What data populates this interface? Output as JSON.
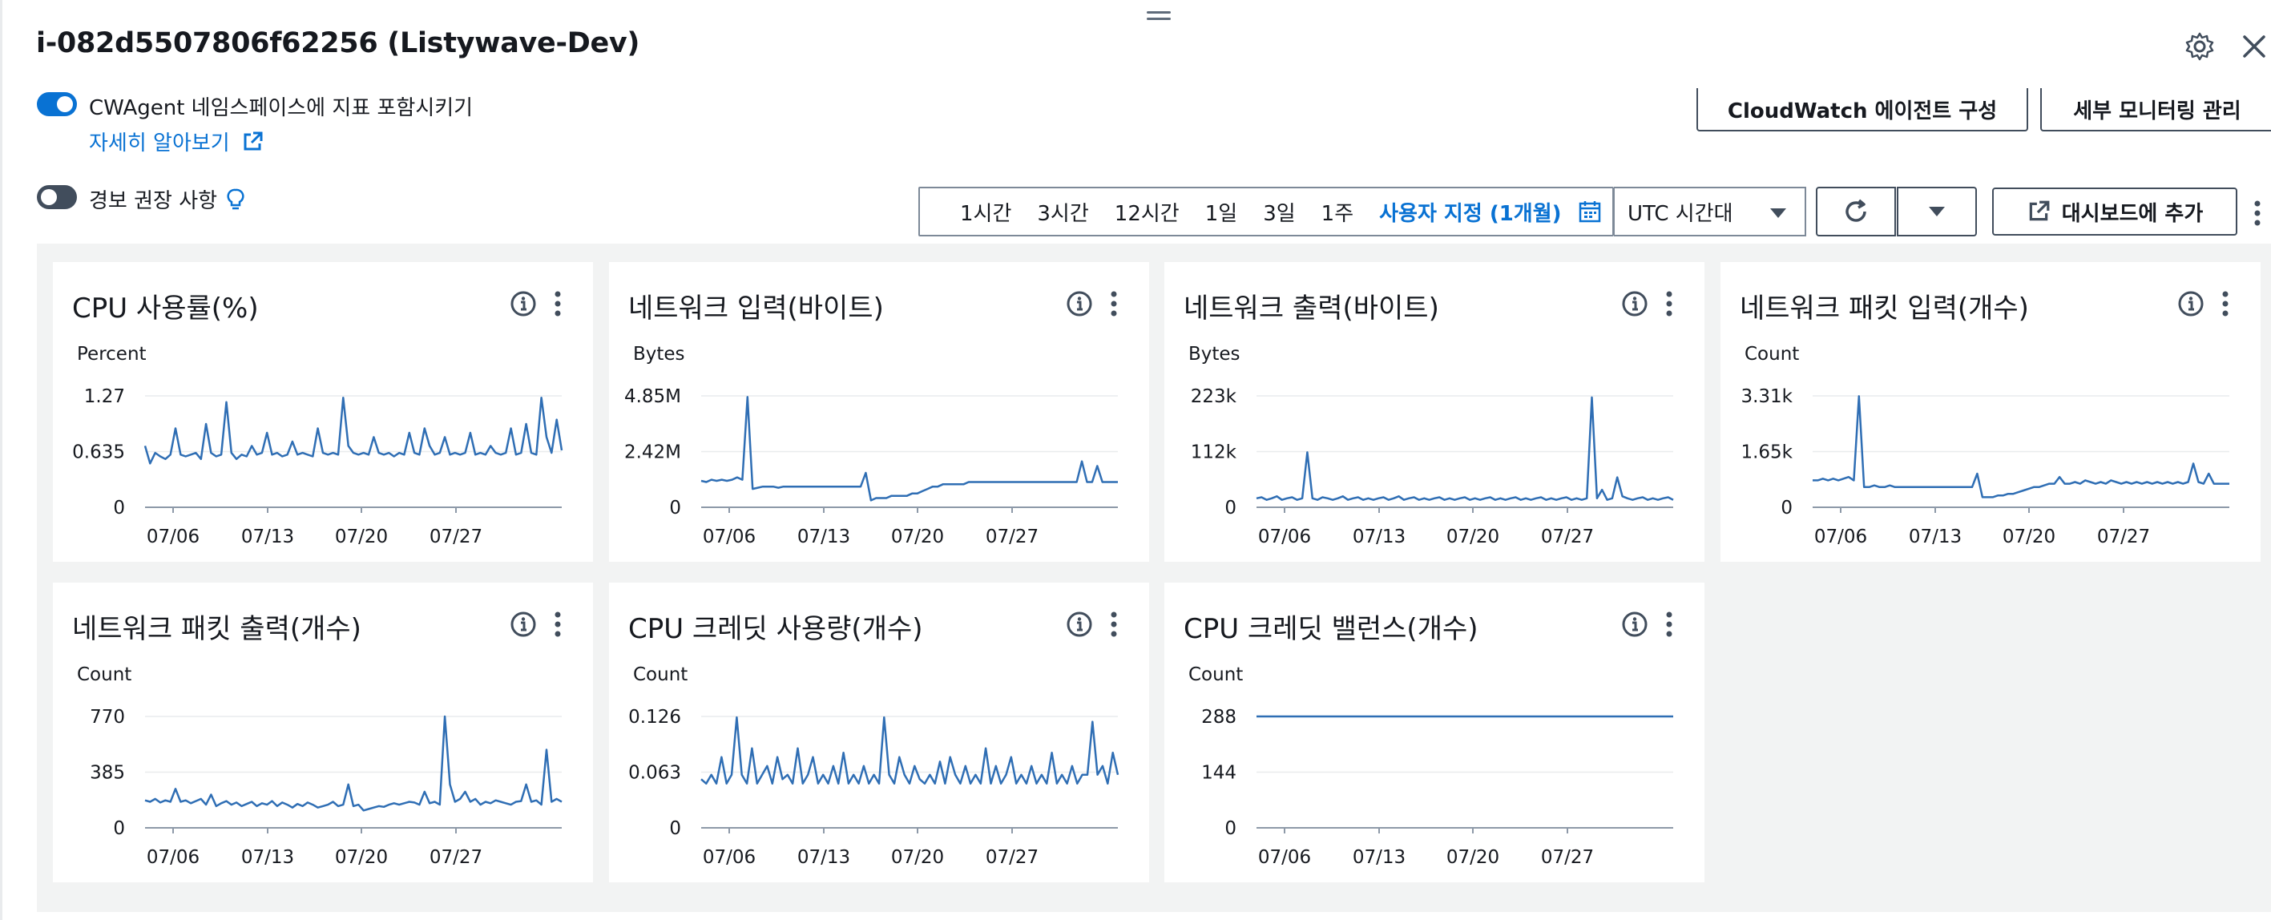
{
  "header": {
    "title": "i-082d5507806f62256 (Listywave-Dev)",
    "settings_icon": "gear-icon",
    "close_icon": "close-icon"
  },
  "options": {
    "cwagent_label": "CWAgent 네임스페이스에 지표 포함시키기",
    "cwagent_enabled": true,
    "learn_more": "자세히 알아보기",
    "alarm_label": "경보 권장 사항",
    "alarm_enabled": false
  },
  "top_buttons": {
    "cloudwatch_agent": "CloudWatch 에이전트 구성",
    "detailed_monitoring": "세부 모니터링 관리"
  },
  "toolbar": {
    "ranges": [
      "1시간",
      "3시간",
      "12시간",
      "1일",
      "3일",
      "1주",
      "사용자 지정 (1개월)"
    ],
    "selected_range": "사용자 지정 (1개월)",
    "timezone": "UTC 시간대",
    "add_dashboard": "대시보드에 추가"
  },
  "colors": {
    "accent": "#0972d3",
    "series": "#2f6eb4",
    "grid_bg": "#f2f3f3"
  },
  "chart_data": [
    {
      "type": "line",
      "title": "CPU 사용률(%)",
      "unit": "Percent",
      "y_ticks": [
        "1.27",
        "0.635",
        "0"
      ],
      "ylim": [
        0,
        1.27
      ],
      "x_ticks": [
        "07/06",
        "07/13",
        "07/20",
        "07/27"
      ],
      "series": [
        {
          "values": [
            0.7,
            0.5,
            0.62,
            0.58,
            0.55,
            0.6,
            0.9,
            0.6,
            0.58,
            0.6,
            0.62,
            0.55,
            0.95,
            0.62,
            0.58,
            0.6,
            1.2,
            0.62,
            0.55,
            0.6,
            0.58,
            0.7,
            0.6,
            0.62,
            0.85,
            0.6,
            0.62,
            0.58,
            0.6,
            0.75,
            0.6,
            0.62,
            0.6,
            0.58,
            0.9,
            0.62,
            0.6,
            0.62,
            0.6,
            1.25,
            0.7,
            0.62,
            0.6,
            0.62,
            0.6,
            0.8,
            0.62,
            0.6,
            0.62,
            0.58,
            0.62,
            0.6,
            0.85,
            0.62,
            0.6,
            0.9,
            0.7,
            0.6,
            0.62,
            0.8,
            0.6,
            0.62,
            0.6,
            0.62,
            0.85,
            0.6,
            0.62,
            0.6,
            0.7,
            0.62,
            0.6,
            0.62,
            0.9,
            0.6,
            0.62,
            0.95,
            0.62,
            0.6,
            1.25,
            0.8,
            0.62,
            1.0,
            0.65
          ]
        }
      ]
    },
    {
      "type": "line",
      "title": "네트워크 입력(바이트)",
      "unit": "Bytes",
      "y_ticks": [
        "4.85M",
        "2.42M",
        "0"
      ],
      "ylim": [
        0,
        4.85
      ],
      "x_ticks": [
        "07/06",
        "07/13",
        "07/20",
        "07/27"
      ],
      "series": [
        {
          "values": [
            1.15,
            1.1,
            1.2,
            1.15,
            1.2,
            1.15,
            1.2,
            1.3,
            1.2,
            4.8,
            0.8,
            0.85,
            0.9,
            0.9,
            0.9,
            0.85,
            0.9,
            0.9,
            0.9,
            0.9,
            0.9,
            0.9,
            0.9,
            0.9,
            0.9,
            0.9,
            0.9,
            0.9,
            0.9,
            0.9,
            0.9,
            0.9,
            1.5,
            0.3,
            0.4,
            0.4,
            0.4,
            0.5,
            0.5,
            0.5,
            0.5,
            0.6,
            0.6,
            0.7,
            0.8,
            0.9,
            0.9,
            1.0,
            1.0,
            1.0,
            1.0,
            1.0,
            1.1,
            1.1,
            1.1,
            1.1,
            1.1,
            1.1,
            1.1,
            1.1,
            1.1,
            1.1,
            1.1,
            1.1,
            1.1,
            1.1,
            1.1,
            1.1,
            1.1,
            1.1,
            1.1,
            1.1,
            1.1,
            1.1,
            2.0,
            1.1,
            1.1,
            1.8,
            1.1,
            1.1,
            1.1,
            1.1
          ]
        }
      ]
    },
    {
      "type": "line",
      "title": "네트워크 출력(바이트)",
      "unit": "Bytes",
      "y_ticks": [
        "223k",
        "112k",
        "0"
      ],
      "ylim": [
        0,
        223
      ],
      "x_ticks": [
        "07/06",
        "07/13",
        "07/20",
        "07/27"
      ],
      "series": [
        {
          "values": [
            18,
            20,
            15,
            18,
            22,
            15,
            18,
            20,
            15,
            18,
            110,
            18,
            15,
            20,
            18,
            15,
            18,
            22,
            15,
            18,
            20,
            15,
            18,
            15,
            18,
            20,
            15,
            18,
            22,
            15,
            18,
            20,
            15,
            18,
            15,
            18,
            20,
            15,
            18,
            15,
            18,
            20,
            15,
            18,
            15,
            18,
            20,
            15,
            18,
            15,
            18,
            20,
            15,
            18,
            15,
            18,
            20,
            15,
            18,
            15,
            18,
            20,
            15,
            18,
            15,
            18,
            220,
            18,
            35,
            15,
            18,
            60,
            22,
            18,
            15,
            18,
            20,
            15,
            18,
            15,
            18,
            20,
            15
          ]
        }
      ]
    },
    {
      "type": "line",
      "title": "네트워크 패킷 입력(개수)",
      "unit": "Count",
      "y_ticks": [
        "3.31k",
        "1.65k",
        "0"
      ],
      "ylim": [
        0,
        3.31
      ],
      "x_ticks": [
        "07/06",
        "07/13",
        "07/20",
        "07/27"
      ],
      "series": [
        {
          "values": [
            0.8,
            0.8,
            0.85,
            0.8,
            0.85,
            0.8,
            0.85,
            0.9,
            0.8,
            3.3,
            0.6,
            0.6,
            0.65,
            0.6,
            0.6,
            0.65,
            0.6,
            0.6,
            0.6,
            0.6,
            0.6,
            0.6,
            0.6,
            0.6,
            0.6,
            0.6,
            0.6,
            0.6,
            0.6,
            0.6,
            0.6,
            0.6,
            1.0,
            0.3,
            0.3,
            0.3,
            0.35,
            0.35,
            0.4,
            0.4,
            0.45,
            0.5,
            0.55,
            0.6,
            0.6,
            0.65,
            0.7,
            0.7,
            0.9,
            0.7,
            0.7,
            0.75,
            0.7,
            0.8,
            0.75,
            0.7,
            0.75,
            0.7,
            0.8,
            0.75,
            0.7,
            0.75,
            0.7,
            0.75,
            0.7,
            0.75,
            0.7,
            0.75,
            0.7,
            0.75,
            0.7,
            0.75,
            0.7,
            0.75,
            1.3,
            0.75,
            0.7,
            1.0,
            0.7,
            0.7,
            0.7,
            0.7
          ]
        }
      ]
    },
    {
      "type": "line",
      "title": "네트워크 패킷 출력(개수)",
      "unit": "Count",
      "y_ticks": [
        "770",
        "385",
        "0"
      ],
      "ylim": [
        0,
        770
      ],
      "x_ticks": [
        "07/06",
        "07/13",
        "07/20",
        "07/27"
      ],
      "series": [
        {
          "values": [
            190,
            180,
            200,
            175,
            190,
            180,
            270,
            180,
            190,
            170,
            185,
            200,
            160,
            230,
            150,
            170,
            185,
            160,
            175,
            150,
            165,
            180,
            150,
            170,
            160,
            185,
            150,
            175,
            160,
            140,
            165,
            150,
            175,
            160,
            140,
            150,
            160,
            180,
            150,
            160,
            300,
            150,
            160,
            120,
            130,
            140,
            150,
            145,
            160,
            170,
            160,
            170,
            180,
            175,
            160,
            250,
            170,
            180,
            160,
            770,
            300,
            180,
            200,
            250,
            180,
            200,
            160,
            180,
            170,
            190,
            180,
            170,
            160,
            180,
            185,
            300,
            180,
            190,
            160,
            540,
            180,
            200,
            180
          ]
        }
      ]
    },
    {
      "type": "line",
      "title": "CPU 크레딧 사용량(개수)",
      "unit": "Count",
      "y_ticks": [
        "0.126",
        "0.063",
        "0"
      ],
      "ylim": [
        0,
        0.126
      ],
      "x_ticks": [
        "07/06",
        "07/13",
        "07/20",
        "07/27"
      ],
      "series": [
        {
          "values": [
            0.055,
            0.05,
            0.06,
            0.05,
            0.08,
            0.05,
            0.06,
            0.125,
            0.06,
            0.05,
            0.09,
            0.05,
            0.06,
            0.07,
            0.05,
            0.08,
            0.055,
            0.06,
            0.05,
            0.09,
            0.05,
            0.06,
            0.08,
            0.05,
            0.06,
            0.05,
            0.07,
            0.05,
            0.085,
            0.05,
            0.06,
            0.05,
            0.07,
            0.05,
            0.06,
            0.05,
            0.125,
            0.06,
            0.05,
            0.08,
            0.06,
            0.05,
            0.07,
            0.055,
            0.05,
            0.06,
            0.05,
            0.075,
            0.05,
            0.08,
            0.06,
            0.05,
            0.07,
            0.05,
            0.06,
            0.05,
            0.09,
            0.05,
            0.07,
            0.05,
            0.06,
            0.08,
            0.05,
            0.06,
            0.05,
            0.07,
            0.05,
            0.06,
            0.05,
            0.085,
            0.05,
            0.06,
            0.05,
            0.07,
            0.05,
            0.06,
            0.06,
            0.12,
            0.06,
            0.07,
            0.05,
            0.085,
            0.06
          ]
        }
      ]
    },
    {
      "type": "line",
      "title": "CPU 크레딧 밸런스(개수)",
      "unit": "Count",
      "y_ticks": [
        "288",
        "144",
        "0"
      ],
      "ylim": [
        0,
        288
      ],
      "x_ticks": [
        "07/06",
        "07/13",
        "07/20",
        "07/27"
      ],
      "series": [
        {
          "values": [
            288,
            288
          ]
        }
      ]
    }
  ]
}
